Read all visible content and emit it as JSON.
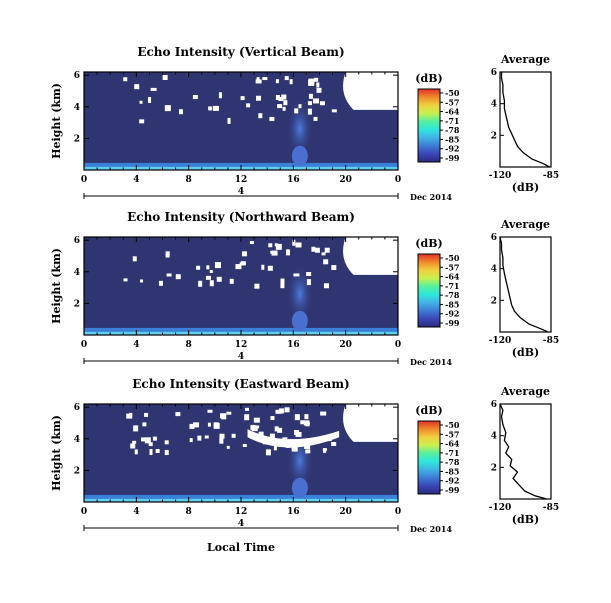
{
  "chart_data": [
    {
      "type": "heatmap",
      "title": "Echo Intensity (Vertical Beam)",
      "ylabel": "Height (km)",
      "x_ticks": [
        "0",
        "4",
        "8",
        "12",
        "16",
        "20",
        "0"
      ],
      "y_ticks": [
        "2",
        "4",
        "6"
      ],
      "xlim": [
        0,
        24
      ],
      "ylim": [
        0,
        6.2
      ],
      "date_day": "4",
      "date_label": "Dec 2014",
      "colorbar_unit": "(dB)",
      "colorbar_ticks": [
        "-50",
        "-57",
        "-64",
        "-71",
        "-78",
        "-85",
        "-92",
        "-99"
      ],
      "features": {
        "near_ground_band": true,
        "plume_hour": 16.5,
        "missing_upper_right": [
          20,
          24
        ]
      },
      "average": {
        "title": "Average",
        "xlabel": "(dB)",
        "x_ticks": [
          "-120",
          "-85"
        ],
        "y_ticks": [
          "2",
          "4",
          "6"
        ],
        "xlim": [
          -120,
          -85
        ],
        "ylim": [
          0,
          6
        ],
        "profile_db": [
          -86,
          -90,
          -98,
          -104,
          -108,
          -110,
          -112,
          -114,
          -115,
          -116,
          -117,
          -117,
          -118,
          -118,
          -119,
          -119
        ],
        "profile_height_km": [
          0.0,
          0.2,
          0.5,
          0.9,
          1.3,
          1.7,
          2.1,
          2.5,
          2.9,
          3.3,
          3.7,
          4.2,
          4.7,
          5.2,
          5.6,
          6.0
        ]
      }
    },
    {
      "type": "heatmap",
      "title": "Echo Intensity (Northward Beam)",
      "ylabel": "Height (km)",
      "x_ticks": [
        "0",
        "4",
        "8",
        "12",
        "16",
        "20",
        "0"
      ],
      "y_ticks": [
        "2",
        "4",
        "6"
      ],
      "xlim": [
        0,
        24
      ],
      "ylim": [
        0,
        6.2
      ],
      "date_day": "4",
      "date_label": "Dec 2014",
      "colorbar_unit": "(dB)",
      "colorbar_ticks": [
        "-50",
        "-57",
        "-64",
        "-71",
        "-78",
        "-85",
        "-92",
        "-99"
      ],
      "features": {
        "near_ground_band": true,
        "plume_hour": 16.5,
        "missing_upper_right": [
          20,
          24
        ]
      },
      "average": {
        "title": "Average",
        "xlabel": "(dB)",
        "x_ticks": [
          "-120",
          "-85"
        ],
        "y_ticks": [
          "2",
          "4",
          "6"
        ],
        "xlim": [
          -120,
          -85
        ],
        "ylim": [
          0,
          6
        ],
        "profile_db": [
          -87,
          -92,
          -100,
          -106,
          -110,
          -112,
          -113,
          -114,
          -115,
          -116,
          -117,
          -118,
          -118,
          -119,
          -119,
          -120
        ],
        "profile_height_km": [
          0.0,
          0.2,
          0.5,
          0.9,
          1.3,
          1.7,
          2.1,
          2.5,
          2.9,
          3.3,
          3.7,
          4.2,
          4.7,
          5.2,
          5.6,
          6.0
        ]
      }
    },
    {
      "type": "heatmap",
      "title": "Echo Intensity (Eastward Beam)",
      "ylabel": "Height (km)",
      "x_ticks": [
        "0",
        "4",
        "8",
        "12",
        "16",
        "20",
        "0"
      ],
      "y_ticks": [
        "2",
        "4",
        "6"
      ],
      "xlim": [
        0,
        24
      ],
      "ylim": [
        0,
        6.2
      ],
      "date_day": "4",
      "date_label": "Dec 2014",
      "xlabel": "Local Time",
      "colorbar_unit": "(dB)",
      "colorbar_ticks": [
        "-50",
        "-57",
        "-64",
        "-71",
        "-78",
        "-85",
        "-92",
        "-99"
      ],
      "features": {
        "near_ground_band": true,
        "plume_hour": 16.5,
        "missing_upper_right": [
          20,
          24
        ]
      },
      "average": {
        "title": "Average",
        "xlabel": "(dB)",
        "x_ticks": [
          "-120",
          "-85"
        ],
        "y_ticks": [
          "2",
          "4",
          "6"
        ],
        "xlim": [
          -120,
          -85
        ],
        "ylim": [
          0,
          6
        ],
        "profile_db": [
          -88,
          -96,
          -103,
          -107,
          -111,
          -108,
          -113,
          -112,
          -116,
          -114,
          -117,
          -116,
          -118,
          -119,
          -118,
          -120
        ],
        "profile_height_km": [
          0.0,
          0.2,
          0.5,
          0.9,
          1.3,
          1.7,
          2.1,
          2.5,
          2.9,
          3.3,
          3.7,
          4.2,
          4.7,
          5.2,
          5.6,
          6.0
        ]
      }
    }
  ],
  "colors": {
    "background": "#2f3571",
    "near_ground": "#3a7fd8",
    "plume": "#4664c6",
    "missing": "#ffffff",
    "colorbar": [
      "#2c2a7d",
      "#3a46b6",
      "#3f7ad6",
      "#43b2e6",
      "#2ee6dc",
      "#55f0a0",
      "#c8f050",
      "#f0d040",
      "#f08a2a",
      "#e0302a"
    ]
  }
}
